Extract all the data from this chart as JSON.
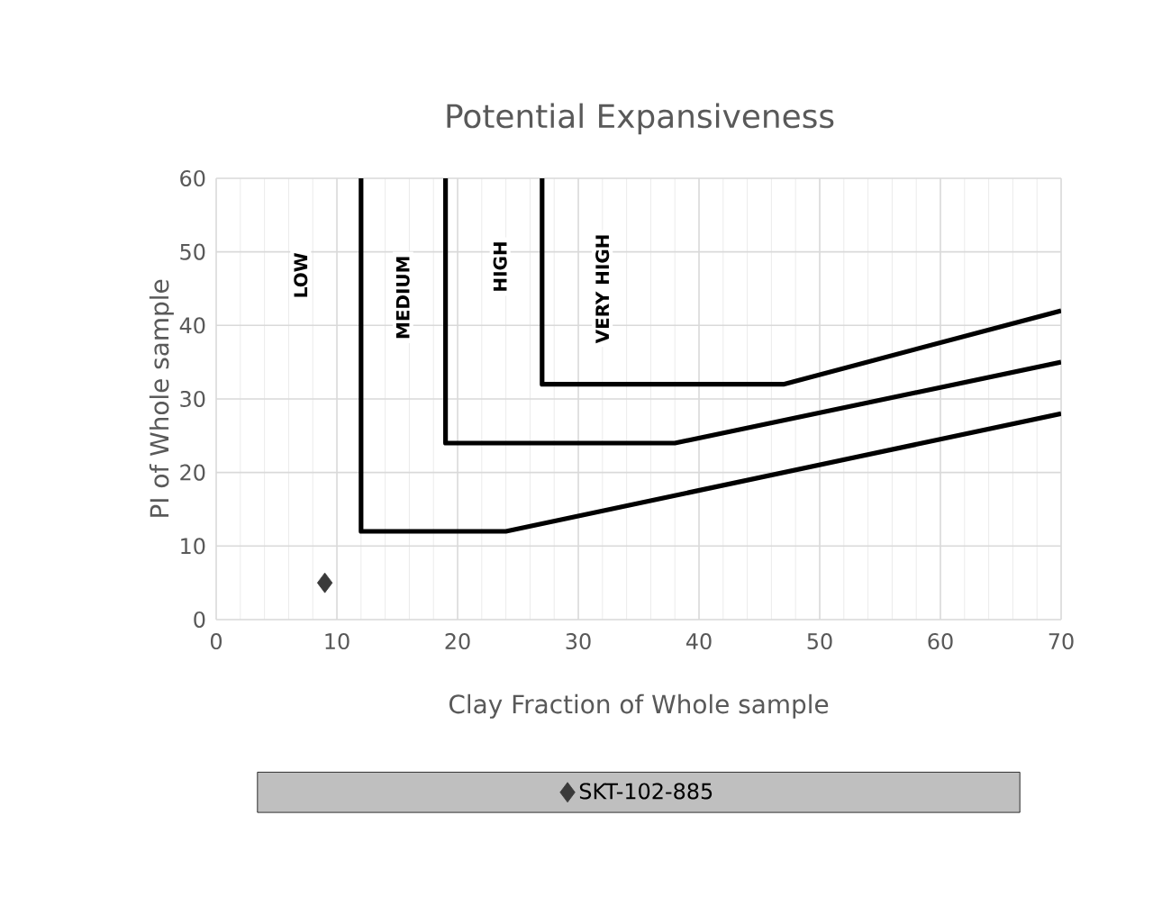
{
  "chart_data": {
    "type": "line",
    "title": "Potential Expansiveness",
    "xlabel": "Clay Fraction of Whole sample",
    "ylabel": "PI of Whole sample",
    "xlim": [
      0,
      70
    ],
    "ylim": [
      0,
      60
    ],
    "xticks": [
      0,
      10,
      20,
      30,
      40,
      50,
      60,
      70
    ],
    "yticks": [
      0,
      10,
      20,
      30,
      40,
      50,
      60
    ],
    "grid": true,
    "legend": "bottom",
    "marker": "none",
    "line_style": "solid",
    "series": [
      {
        "color": "#000000",
        "x": [
          12,
          12,
          24,
          70
        ],
        "values": [
          60,
          12,
          12,
          28
        ]
      },
      {
        "color": "#000000",
        "x": [
          19,
          19,
          38,
          70
        ],
        "values": [
          60,
          24,
          24,
          35
        ]
      },
      {
        "color": "#000000",
        "x": [
          27,
          27,
          47,
          70
        ],
        "values": [
          60,
          32,
          32,
          42
        ]
      },
      {
        "type": "scatter",
        "name": "SKT-102-885",
        "color": "#3a3a3a",
        "marker": "diamond",
        "x": [
          9
        ],
        "values": [
          5
        ]
      }
    ],
    "annotations": [
      "LOW",
      "MEDIUM",
      "HIGH",
      "VERY HIGH"
    ]
  }
}
